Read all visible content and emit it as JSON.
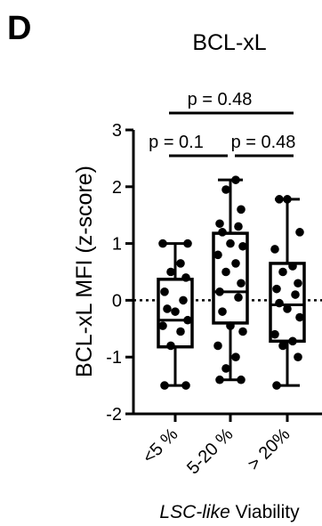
{
  "panel_label": "D",
  "chart_data": {
    "type": "box",
    "title": "BCL-xL",
    "ylabel": "BCL-xL MFI  (z-score)",
    "xlabel_italic": "LSC-like",
    "xlabel_rest": " Viability",
    "ylim": [
      -2,
      3
    ],
    "yticks": [
      "-2",
      "-1",
      "0",
      "1",
      "2",
      "3"
    ],
    "reference_line_y": 0,
    "categories": [
      "<5 %",
      "5-20 %",
      "> 20%"
    ],
    "boxes": [
      {
        "min": -1.5,
        "q1": -0.82,
        "median": -0.35,
        "q3": 0.37,
        "max": 1.0
      },
      {
        "min": -1.4,
        "q1": -0.4,
        "median": 0.15,
        "q3": 1.18,
        "max": 2.12
      },
      {
        "min": -1.5,
        "q1": -0.72,
        "median": -0.08,
        "q3": 0.65,
        "max": 1.78
      }
    ],
    "points": [
      [
        -1.5,
        -1.5,
        -0.8,
        -0.55,
        -0.45,
        -0.35,
        -0.2,
        -0.15,
        0.0,
        0.15,
        0.4,
        0.5,
        0.65,
        1.0,
        1.0
      ],
      [
        -1.4,
        -1.4,
        -1.2,
        -1.0,
        -0.8,
        -0.55,
        -0.45,
        -0.2,
        0.05,
        0.15,
        0.3,
        0.5,
        0.65,
        0.8,
        0.95,
        1.0,
        1.2,
        1.3,
        1.35,
        1.6,
        1.95,
        2.12
      ],
      [
        -1.5,
        -1.0,
        -0.8,
        -0.72,
        -0.6,
        -0.3,
        -0.15,
        -0.05,
        0.1,
        0.2,
        0.3,
        0.5,
        0.6,
        0.9,
        1.2,
        1.78,
        1.78
      ]
    ],
    "comparisons": [
      {
        "label": "p = 0.1",
        "from": 0,
        "to": 1
      },
      {
        "label": "p = 0.48",
        "from": 1,
        "to": 2
      },
      {
        "label": "p = 0.48",
        "from": 0,
        "to": 2
      }
    ]
  }
}
